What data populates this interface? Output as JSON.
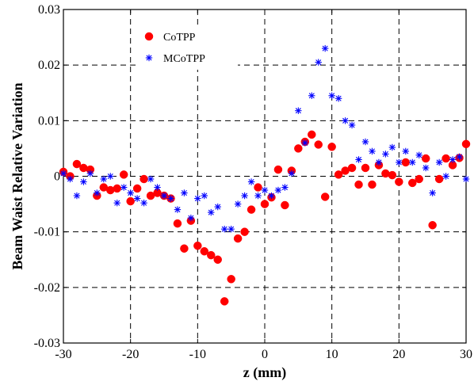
{
  "chart_data": {
    "type": "scatter",
    "title": "",
    "xlabel": "z (mm)",
    "ylabel": "Beam Waist Relative Variation",
    "xlim": [
      -30,
      30
    ],
    "ylim": [
      -0.03,
      0.03
    ],
    "x_ticks": [
      -30,
      -20,
      -10,
      0,
      10,
      20,
      30
    ],
    "x_tick_labels": [
      "-30",
      "-20",
      "-10",
      "0",
      "10",
      "20",
      "30"
    ],
    "y_ticks": [
      -0.03,
      -0.02,
      -0.01,
      0,
      0.01,
      0.02,
      0.03
    ],
    "y_tick_labels": [
      "-0.03",
      "-0.02",
      "-0.01",
      "0",
      "0.01",
      "0.02",
      "0.03"
    ],
    "grid": true,
    "legend_position": "top-left",
    "series": [
      {
        "name": "CoTPP",
        "marker": "circle",
        "color": "#ff0000",
        "points": [
          [
            -30,
            0.0008
          ],
          [
            -29,
            0.0
          ],
          [
            -28,
            0.0022
          ],
          [
            -27,
            0.0015
          ],
          [
            -26,
            0.0012
          ],
          [
            -25,
            -0.0035
          ],
          [
            -24,
            -0.002
          ],
          [
            -23,
            -0.0025
          ],
          [
            -22,
            -0.0022
          ],
          [
            -21,
            0.0003
          ],
          [
            -20,
            -0.0045
          ],
          [
            -19,
            -0.0022
          ],
          [
            -18,
            -0.0005
          ],
          [
            -17,
            -0.0035
          ],
          [
            -16,
            -0.003
          ],
          [
            -15,
            -0.0035
          ],
          [
            -14,
            -0.004
          ],
          [
            -13,
            -0.0085
          ],
          [
            -12,
            -0.013
          ],
          [
            -11,
            -0.008
          ],
          [
            -10,
            -0.0125
          ],
          [
            -9,
            -0.0135
          ],
          [
            -8,
            -0.0142
          ],
          [
            -7,
            -0.015
          ],
          [
            -6,
            -0.0225
          ],
          [
            -5,
            -0.0185
          ],
          [
            -4,
            -0.0112
          ],
          [
            -3,
            -0.01
          ],
          [
            -2,
            -0.006
          ],
          [
            -1,
            -0.002
          ],
          [
            0,
            -0.005
          ],
          [
            1,
            -0.0038
          ],
          [
            2,
            0.0012
          ],
          [
            3,
            -0.0052
          ],
          [
            4,
            0.001
          ],
          [
            5,
            0.005
          ],
          [
            6,
            0.0062
          ],
          [
            7,
            0.0075
          ],
          [
            8,
            0.0057
          ],
          [
            9,
            -0.0037
          ],
          [
            10,
            0.0053
          ],
          [
            11,
            0.0003
          ],
          [
            12,
            0.001
          ],
          [
            13,
            0.0015
          ],
          [
            14,
            -0.0015
          ],
          [
            15,
            0.0015
          ],
          [
            16,
            -0.0015
          ],
          [
            17,
            0.002
          ],
          [
            18,
            0.0005
          ],
          [
            19,
            0.0002
          ],
          [
            20,
            -0.001
          ],
          [
            21,
            0.0025
          ],
          [
            22,
            -0.0012
          ],
          [
            23,
            -0.0005
          ],
          [
            24,
            0.0032
          ],
          [
            25,
            -0.0088
          ],
          [
            26,
            -0.0005
          ],
          [
            27,
            0.0032
          ],
          [
            28,
            0.002
          ],
          [
            29,
            0.0033
          ],
          [
            30,
            0.0058
          ]
        ]
      },
      {
        "name": "MCoTPP",
        "marker": "star",
        "color": "#0000ff",
        "points": [
          [
            -30,
            0.0005
          ],
          [
            -29,
            -0.0005
          ],
          [
            -28,
            -0.0035
          ],
          [
            -27,
            -0.001
          ],
          [
            -26,
            0.0005
          ],
          [
            -25,
            -0.003
          ],
          [
            -24,
            -0.0005
          ],
          [
            -23,
            0.0
          ],
          [
            -22,
            -0.0048
          ],
          [
            -21,
            -0.002
          ],
          [
            -20,
            -0.003
          ],
          [
            -19,
            -0.004
          ],
          [
            -18,
            -0.0048
          ],
          [
            -17,
            -0.0005
          ],
          [
            -16,
            -0.002
          ],
          [
            -15,
            -0.0035
          ],
          [
            -14,
            -0.004
          ],
          [
            -13,
            -0.006
          ],
          [
            -12,
            -0.003
          ],
          [
            -11,
            -0.0075
          ],
          [
            -10,
            -0.004
          ],
          [
            -9,
            -0.0035
          ],
          [
            -8,
            -0.0065
          ],
          [
            -7,
            -0.0055
          ],
          [
            -6,
            -0.0095
          ],
          [
            -5,
            -0.0095
          ],
          [
            -4,
            -0.005
          ],
          [
            -3,
            -0.0035
          ],
          [
            -2,
            -0.001
          ],
          [
            -1,
            -0.0035
          ],
          [
            0,
            -0.0025
          ],
          [
            1,
            -0.0035
          ],
          [
            2,
            -0.0025
          ],
          [
            3,
            -0.002
          ],
          [
            4,
            0.0005
          ],
          [
            5,
            0.0118
          ],
          [
            6,
            0.006
          ],
          [
            7,
            0.0145
          ],
          [
            8,
            0.0205
          ],
          [
            9,
            0.023
          ],
          [
            10,
            0.0145
          ],
          [
            11,
            0.014
          ],
          [
            12,
            0.01
          ],
          [
            13,
            0.0092
          ],
          [
            14,
            0.003
          ],
          [
            15,
            0.0062
          ],
          [
            16,
            0.0045
          ],
          [
            17,
            0.0025
          ],
          [
            18,
            0.004
          ],
          [
            19,
            0.0052
          ],
          [
            20,
            0.0025
          ],
          [
            21,
            0.0045
          ],
          [
            22,
            0.0025
          ],
          [
            23,
            0.0038
          ],
          [
            24,
            0.0015
          ],
          [
            25,
            -0.003
          ],
          [
            26,
            0.0025
          ],
          [
            27,
            0.0
          ],
          [
            28,
            0.003
          ],
          [
            29,
            0.0035
          ],
          [
            30,
            -0.0005
          ]
        ]
      }
    ]
  }
}
